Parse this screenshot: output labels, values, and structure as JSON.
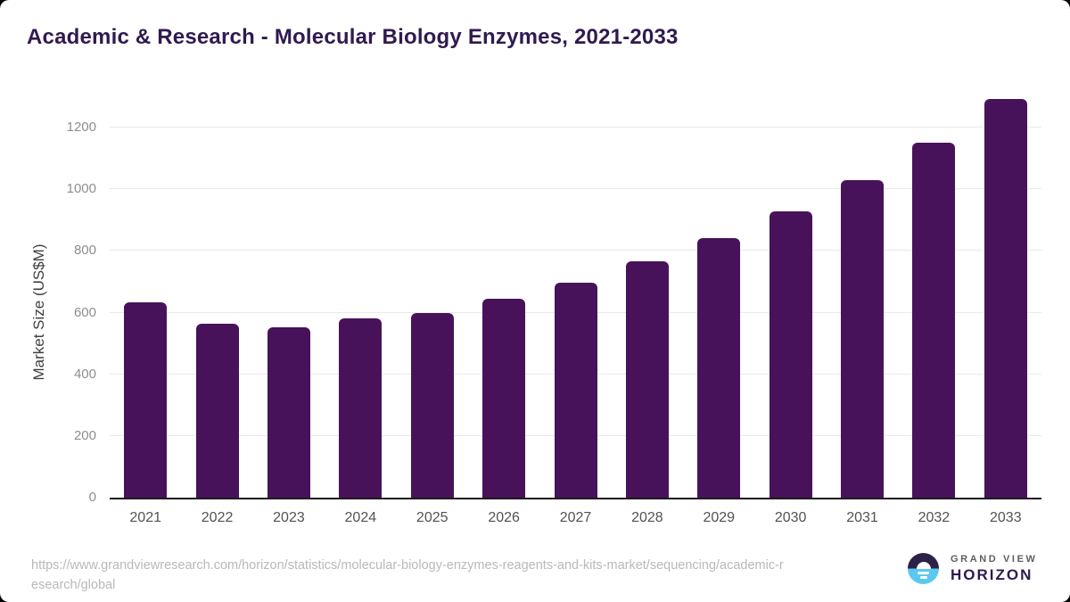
{
  "page": {
    "title": "Academic & Research - Molecular Biology Enzymes, 2021-2033"
  },
  "chart_data": {
    "type": "bar",
    "title": "Academic & Research - Molecular Biology Enzymes, 2021-2033",
    "categories": [
      "2021",
      "2022",
      "2023",
      "2024",
      "2025",
      "2026",
      "2027",
      "2028",
      "2029",
      "2030",
      "2031",
      "2032",
      "2033"
    ],
    "values": [
      632,
      563,
      552,
      580,
      598,
      645,
      698,
      765,
      841,
      928,
      1029,
      1150,
      1292
    ],
    "xlabel": "",
    "ylabel": "Market Size (US$M)",
    "yticks": [
      0,
      200,
      400,
      600,
      800,
      1000,
      1200
    ],
    "ylim": [
      0,
      1300
    ],
    "grid": true,
    "legend": false,
    "bar_color": "#48125a"
  },
  "footer": {
    "source_url_lines": [
      "https://www.grandviewresearch.com/horizon/statistics/molecular-biology-enzymes-reagents-and-kits-market/sequencing/academic-r",
      "esearch/global"
    ]
  },
  "branding": {
    "name_top": "GRAND VIEW",
    "name_bottom": "HORIZON",
    "logo_icon": "horizon-sun-over-water-icon",
    "logo_dark_color": "#2e2147",
    "logo_blue_color": "#5cc8f2"
  },
  "colors": {
    "title_purple": "#301a4f",
    "bar_purple": "#48125a",
    "axis_line": "#1c1c1c",
    "gridline": "#e9e9e9",
    "y_tick_text": "#8e8e8e",
    "x_tick_text": "#525252",
    "url_text": "#b9b9b9",
    "background": "#ffffff"
  }
}
